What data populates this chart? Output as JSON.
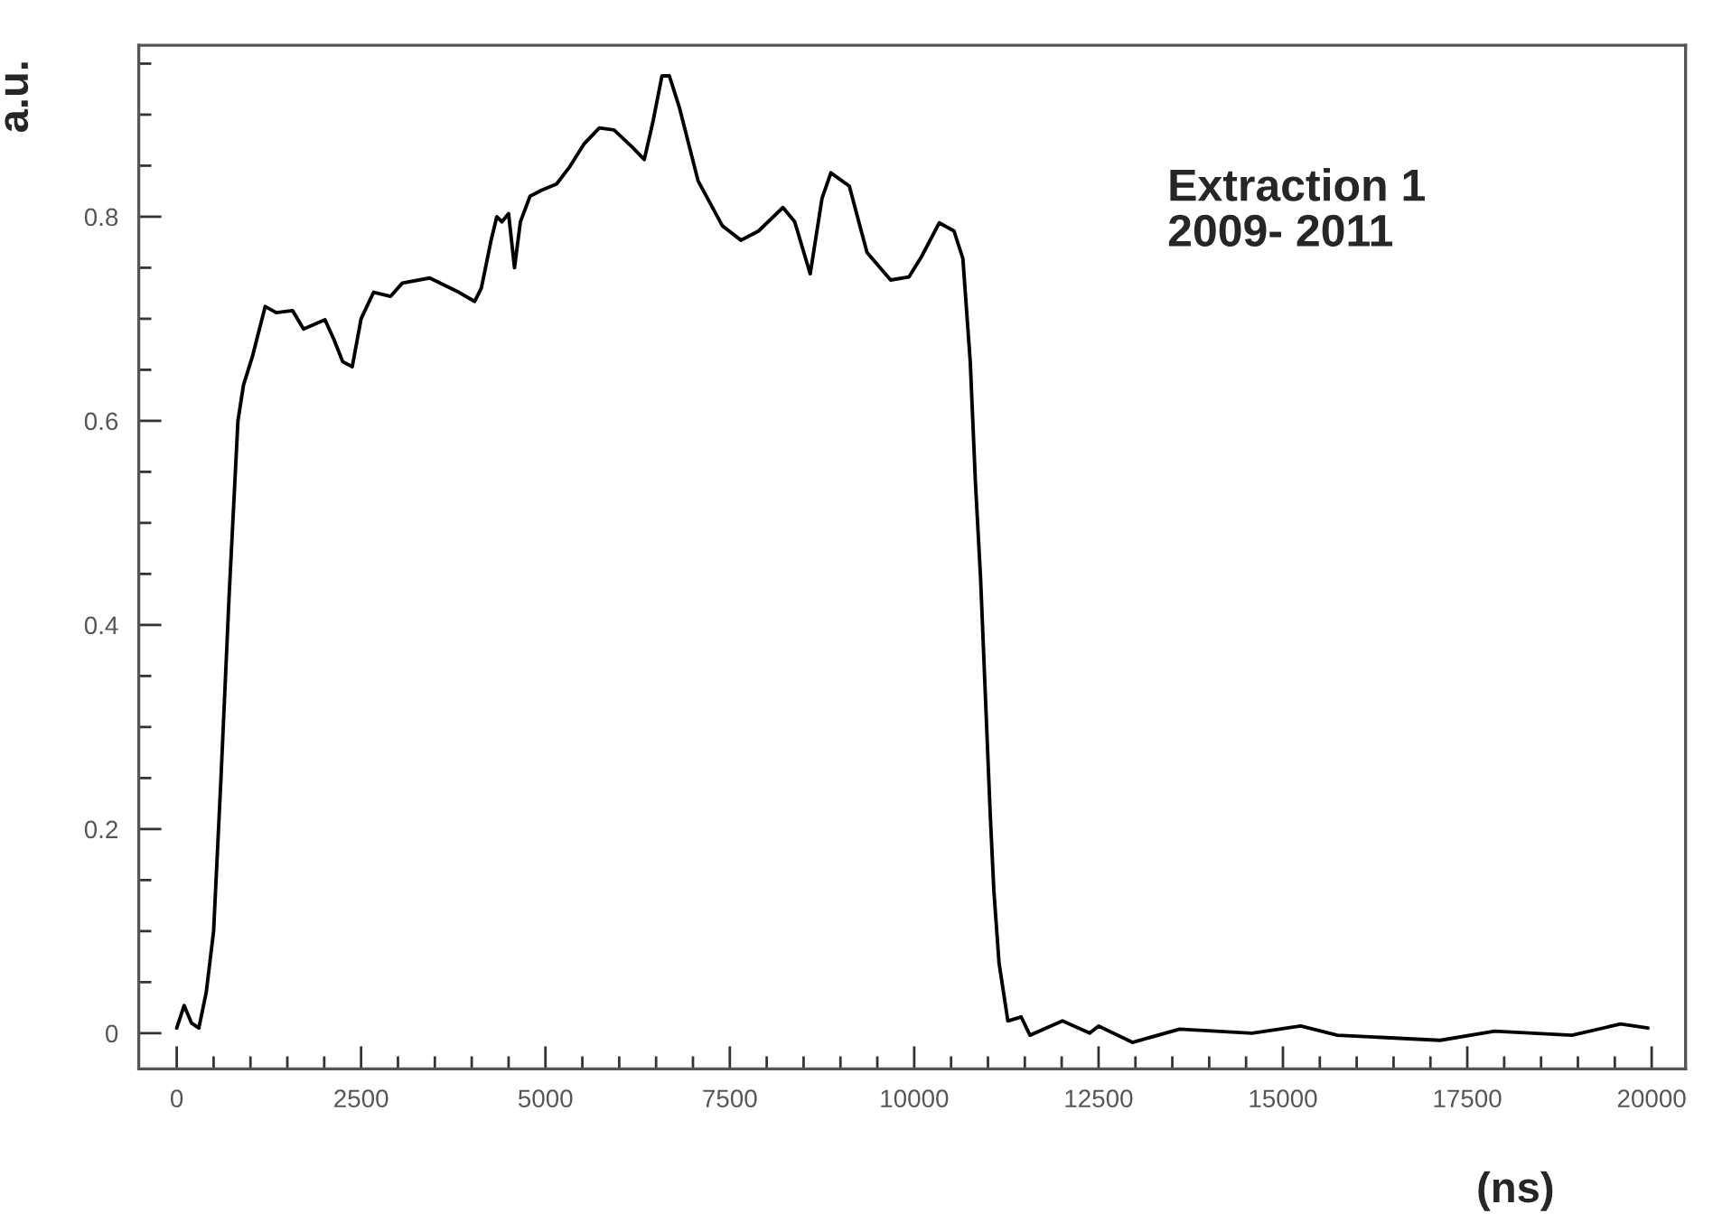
{
  "chart_data": {
    "type": "line",
    "xlabel": "(ns)",
    "ylabel": "a.u.",
    "annotations": [
      "Extraction 1\n2009- 2011"
    ],
    "series": [
      {
        "color": "#000000",
        "x": [
          0,
          100,
          200,
          300,
          400,
          500,
          600,
          710,
          830,
          905,
          1030,
          1200,
          1350,
          1570,
          1720,
          2010,
          2130,
          2250,
          2380,
          2500,
          2670,
          2900,
          3060,
          3430,
          3800,
          4040,
          4130,
          4260,
          4340,
          4410,
          4500,
          4580,
          4660,
          4790,
          4950,
          5150,
          5320,
          5520,
          5730,
          5930,
          6180,
          6340,
          6460,
          6580,
          6680,
          6820,
          7070,
          7400,
          7650,
          7890,
          8220,
          8380,
          8590,
          8750,
          8870,
          9120,
          9360,
          9680,
          9930,
          10100,
          10340,
          10540,
          10660,
          10760,
          10830,
          10900,
          11030,
          11080,
          11150,
          11270,
          11450,
          11570,
          12010,
          12380,
          12500,
          12960,
          13600,
          14580,
          15240,
          15740,
          17130,
          17870,
          18920,
          19580,
          19950
        ],
        "values": [
          0.005,
          0.027,
          0.01,
          0.005,
          0.04,
          0.1,
          0.25,
          0.428,
          0.6,
          0.635,
          0.664,
          0.712,
          0.706,
          0.708,
          0.69,
          0.699,
          0.68,
          0.658,
          0.653,
          0.7,
          0.726,
          0.722,
          0.735,
          0.74,
          0.727,
          0.717,
          0.73,
          0.776,
          0.8,
          0.795,
          0.803,
          0.75,
          0.795,
          0.82,
          0.826,
          0.832,
          0.848,
          0.871,
          0.887,
          0.885,
          0.868,
          0.856,
          0.894,
          0.938,
          0.938,
          0.906,
          0.835,
          0.791,
          0.777,
          0.786,
          0.809,
          0.795,
          0.744,
          0.818,
          0.843,
          0.83,
          0.765,
          0.738,
          0.741,
          0.761,
          0.794,
          0.786,
          0.759,
          0.658,
          0.54,
          0.446,
          0.216,
          0.14,
          0.069,
          0.012,
          0.016,
          -0.002,
          0.012,
          0.0,
          0.007,
          -0.009,
          0.004,
          0.0,
          0.007,
          -0.002,
          -0.007,
          0.002,
          -0.002,
          0.009,
          0.005
        ]
      }
    ],
    "xlim": [
      -515,
      20460
    ],
    "ylim": [
      -0.035,
      0.968
    ],
    "xticks": [
      0,
      {
        "value": 500,
        "label": null
      },
      {
        "value": 1000,
        "label": null
      },
      {
        "value": 1500,
        "label": null
      },
      {
        "value": 2000,
        "label": null
      },
      2500,
      {
        "value": 3000,
        "label": null
      },
      {
        "value": 3500,
        "label": null
      },
      {
        "value": 4000,
        "label": null
      },
      {
        "value": 4500,
        "label": null
      },
      5000,
      {
        "value": 5500,
        "label": null
      },
      {
        "value": 6000,
        "label": null
      },
      {
        "value": 6500,
        "label": null
      },
      {
        "value": 7000,
        "label": null
      },
      7500,
      {
        "value": 8000,
        "label": null
      },
      {
        "value": 8500,
        "label": null
      },
      {
        "value": 9000,
        "label": null
      },
      {
        "value": 9500,
        "label": null
      },
      10000,
      {
        "value": 10500,
        "label": null
      },
      {
        "value": 11000,
        "label": null
      },
      {
        "value": 11500,
        "label": null
      },
      {
        "value": 12000,
        "label": null
      },
      12500,
      {
        "value": 13000,
        "label": null
      },
      {
        "value": 13500,
        "label": null
      },
      {
        "value": 14000,
        "label": null
      },
      {
        "value": 14500,
        "label": null
      },
      15000,
      {
        "value": 15500,
        "label": null
      },
      {
        "value": 16000,
        "label": null
      },
      {
        "value": 16500,
        "label": null
      },
      {
        "value": 17000,
        "label": null
      },
      17500,
      {
        "value": 18000,
        "label": null
      },
      {
        "value": 18500,
        "label": null
      },
      {
        "value": 19000,
        "label": null
      },
      {
        "value": 19500,
        "label": null
      },
      20000
    ],
    "yticks": [
      0,
      {
        "value": 0.05,
        "label": null
      },
      {
        "value": 0.1,
        "label": null
      },
      {
        "value": 0.15,
        "label": null
      },
      0.2,
      {
        "value": 0.25,
        "label": null
      },
      {
        "value": 0.3,
        "label": null
      },
      {
        "value": 0.35,
        "label": null
      },
      0.4,
      {
        "value": 0.45,
        "label": null
      },
      {
        "value": 0.5,
        "label": null
      },
      {
        "value": 0.55,
        "label": null
      },
      0.6,
      {
        "value": 0.65,
        "label": null
      },
      {
        "value": 0.7,
        "label": null
      },
      {
        "value": 0.75,
        "label": null
      },
      0.8,
      {
        "value": 0.85,
        "label": null
      },
      {
        "value": 0.9,
        "label": null
      },
      {
        "value": 0.95,
        "label": null
      }
    ],
    "grid": false,
    "legend": false,
    "marker": "none",
    "line_style": "solid"
  }
}
